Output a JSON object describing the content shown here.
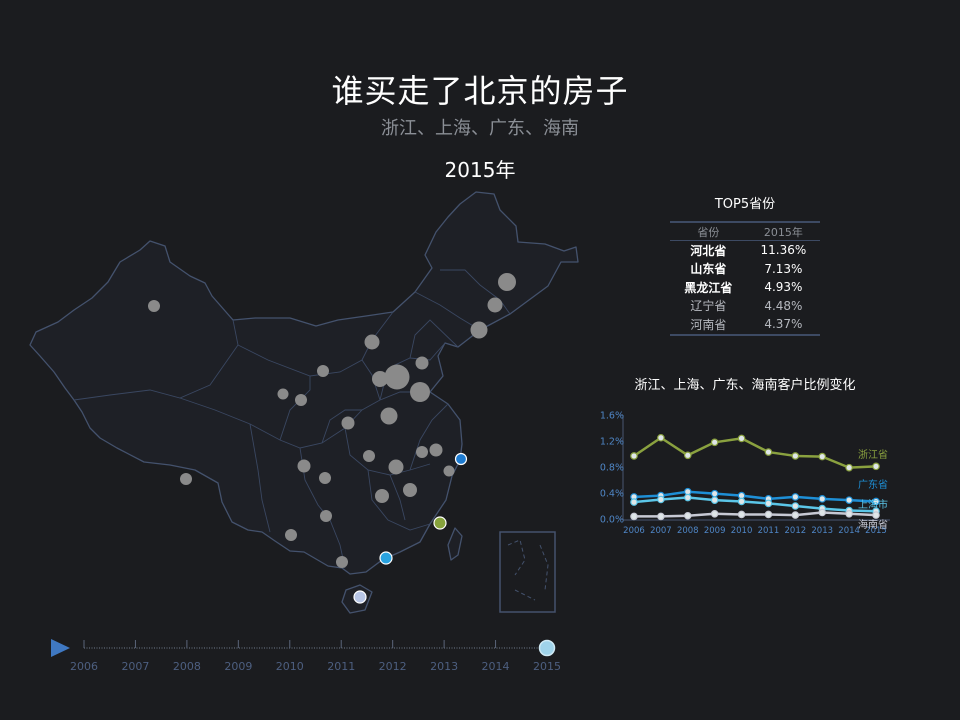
{
  "header": {
    "title": "谁买走了北京的房子",
    "subtitle": "浙江、上海、广东、海南",
    "year": "2015年"
  },
  "top5": {
    "title": "TOP5省份",
    "columns": [
      "省份",
      "2015年"
    ],
    "rows": [
      {
        "province": "河北省",
        "value": "11.36%",
        "bold": true
      },
      {
        "province": "山东省",
        "value": "7.13%",
        "bold": true
      },
      {
        "province": "黑龙江省",
        "value": "4.93%",
        "bold": true
      },
      {
        "province": "辽宁省",
        "value": "4.48%",
        "bold": false
      },
      {
        "province": "河南省",
        "value": "4.37%",
        "bold": false
      }
    ]
  },
  "timeline": {
    "years": [
      "2006",
      "2007",
      "2008",
      "2009",
      "2010",
      "2011",
      "2012",
      "2013",
      "2014",
      "2015"
    ],
    "current": "2015"
  },
  "chart_data": [
    {
      "type": "scatter",
      "description_kind": "bubble map",
      "bubbles": [
        {
          "name": "浙江",
          "color": "#1e7bd0",
          "highlight": true
        },
        {
          "name": "上海",
          "color": "#1e7bd0",
          "highlight": true
        },
        {
          "name": "广东",
          "color": "#29a3e0",
          "highlight": true
        },
        {
          "name": "海南",
          "color": "#b8c6e6",
          "highlight": true
        },
        {
          "name": "福建",
          "color": "#86a23c",
          "highlight": true
        }
      ],
      "neutral_color": "#8a8a8a"
    },
    {
      "type": "line",
      "title": "浙江、上海、广东、海南客户比例变化",
      "x": [
        "2006",
        "2007",
        "2008",
        "2009",
        "2010",
        "2011",
        "2012",
        "2013",
        "2014",
        "2015"
      ],
      "ylim": [
        0,
        1.6
      ],
      "yticks": [
        "0.0%",
        "0.4%",
        "0.8%",
        "1.2%",
        "1.6%"
      ],
      "grid": false,
      "series": [
        {
          "name": "浙江省",
          "color": "#8aa13f",
          "values": [
            0.97,
            1.25,
            0.98,
            1.18,
            1.24,
            1.03,
            0.97,
            0.96,
            0.79,
            0.81
          ]
        },
        {
          "name": "广东省",
          "color": "#1e8fd6",
          "values": [
            0.34,
            0.36,
            0.42,
            0.39,
            0.36,
            0.31,
            0.34,
            0.31,
            0.29,
            0.27
          ]
        },
        {
          "name": "上海市",
          "color": "#5bc6e8",
          "values": [
            0.26,
            0.3,
            0.33,
            0.29,
            0.27,
            0.24,
            0.2,
            0.16,
            0.13,
            0.12
          ]
        },
        {
          "name": "海南省",
          "color": "#c7c9d4",
          "values": [
            0.04,
            0.04,
            0.05,
            0.08,
            0.07,
            0.07,
            0.06,
            0.1,
            0.08,
            0.06
          ]
        }
      ]
    }
  ]
}
